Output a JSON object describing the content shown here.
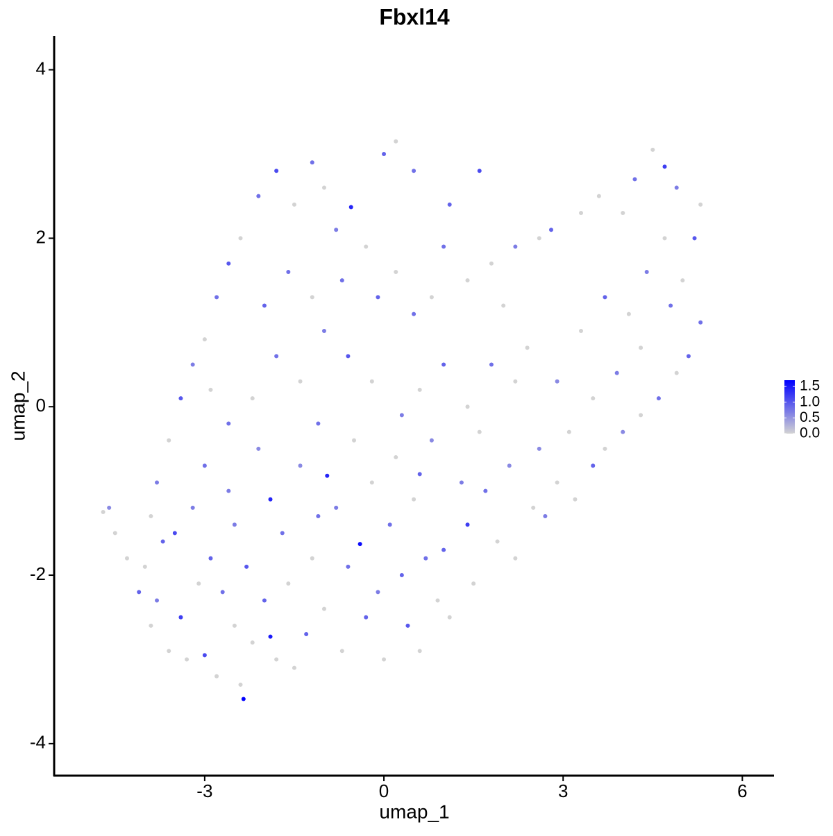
{
  "chart_data": {
    "type": "scatter",
    "title": "Fbxl14",
    "x_label": "umap_1",
    "y_label": "umap_2",
    "xlim": [
      -5.52,
      6.53
    ],
    "ylim": [
      -4.38,
      4.4
    ],
    "xticks": [
      -3,
      0,
      3,
      6
    ],
    "yticks": [
      -4,
      -2,
      0,
      2,
      4
    ],
    "colors": [
      "#d3d3d3",
      "#0000ff"
    ],
    "colorbar": {
      "lim": [
        0,
        1.7
      ],
      "ticks": [
        {
          "value": 0,
          "label": "0.0"
        },
        0.5,
        {
          "value": 1,
          "label": "1.0"
        },
        1.5
      ]
    },
    "x": [
      -4.7,
      -4.6,
      -4.5,
      -4.3,
      -4.1,
      -4.0,
      -3.9,
      -3.8,
      -3.7,
      -3.6,
      -3.5,
      -3.4,
      -3.3,
      -3.2,
      -3.1,
      -3.0,
      -3.0,
      -2.9,
      -2.8,
      -2.7,
      -2.6,
      -2.5,
      -2.4,
      -2.35,
      -2.3,
      -2.2,
      -2.1,
      -2.0,
      -1.9,
      -1.9,
      -1.8,
      -1.7,
      -1.6,
      -1.5,
      -1.4,
      -1.3,
      -1.2,
      -1.1,
      -1.0,
      -0.95,
      -0.8,
      -0.7,
      -0.6,
      -0.5,
      -0.4,
      -0.3,
      -0.2,
      -0.1,
      0.0,
      0.1,
      0.2,
      0.3,
      0.4,
      0.5,
      0.6,
      0.7,
      0.8,
      0.9,
      1.0,
      1.1,
      1.3,
      1.4,
      1.5,
      1.7,
      1.9,
      2.1,
      2.2,
      2.5,
      2.7,
      2.9,
      3.2,
      3.5,
      3.7,
      4.0,
      4.3,
      4.6,
      4.9,
      5.1,
      5.3,
      5.0,
      5.2,
      5.3,
      4.9,
      4.7,
      4.5,
      4.2,
      4.0,
      3.6,
      3.3,
      2.8,
      2.6,
      2.2,
      1.8,
      1.4,
      1.0,
      0.8,
      0.5,
      0.2,
      -0.1,
      -0.3,
      -0.55,
      -0.8,
      -1.0,
      -1.2,
      -1.5,
      -1.8,
      -2.1,
      -2.4,
      -2.6,
      -2.8,
      -3.0,
      -3.2,
      -3.4,
      -3.6,
      -3.8,
      -3.9,
      0.0,
      0.2,
      0.5,
      1.1,
      1.6,
      2.0,
      2.4,
      2.9,
      3.3,
      3.7,
      4.1,
      4.4,
      4.7,
      4.8,
      4.3,
      3.9,
      3.5,
      3.1,
      2.6,
      2.2,
      1.8,
      1.4,
      1.0,
      0.6,
      0.3,
      -0.2,
      -0.6,
      -1.0,
      -1.4,
      -1.8,
      -2.2,
      -2.6,
      -2.9,
      -2.0,
      -1.6,
      -1.2,
      -0.7,
      -2.5,
      -1.1,
      0.6,
      1.6
    ],
    "y": [
      -1.25,
      -1.2,
      -1.5,
      -1.8,
      -2.2,
      -1.9,
      -2.6,
      -2.3,
      -1.6,
      -2.9,
      -1.5,
      -2.5,
      -3.0,
      -1.2,
      -2.1,
      -2.95,
      -0.7,
      -1.8,
      -3.2,
      -2.2,
      -1.0,
      -2.6,
      -3.3,
      -3.47,
      -1.9,
      -2.8,
      -0.5,
      -2.3,
      -2.73,
      -1.1,
      -3.0,
      -1.5,
      -2.1,
      -3.1,
      -0.7,
      -2.7,
      -1.8,
      -0.2,
      -2.4,
      -0.82,
      -1.2,
      -2.9,
      -1.9,
      -0.4,
      -1.63,
      -2.5,
      -0.9,
      -2.2,
      -3.0,
      -1.4,
      -0.6,
      -2.0,
      -2.6,
      -1.1,
      -2.9,
      -1.8,
      -0.4,
      -2.3,
      -1.7,
      -2.5,
      -0.9,
      -1.4,
      -2.1,
      -1.0,
      -1.6,
      -0.7,
      -1.8,
      -1.2,
      -1.3,
      -0.9,
      -1.1,
      -0.7,
      -0.5,
      -0.3,
      -0.1,
      0.1,
      0.4,
      0.6,
      1.0,
      1.5,
      2.0,
      2.4,
      2.6,
      2.85,
      3.05,
      2.7,
      2.3,
      2.5,
      2.3,
      2.1,
      2.0,
      1.9,
      1.7,
      1.5,
      1.9,
      1.3,
      1.1,
      1.6,
      1.3,
      1.9,
      2.37,
      2.1,
      2.6,
      2.9,
      2.4,
      2.8,
      2.5,
      2.0,
      1.7,
      1.3,
      0.8,
      0.5,
      0.1,
      -0.4,
      -0.9,
      -1.3,
      3.0,
      3.15,
      2.8,
      2.4,
      2.8,
      1.2,
      0.7,
      0.3,
      0.9,
      1.3,
      1.1,
      1.6,
      2.0,
      1.2,
      0.7,
      0.4,
      0.1,
      -0.3,
      -0.5,
      0.3,
      0.5,
      0.0,
      0.5,
      0.2,
      -0.1,
      0.3,
      0.6,
      0.9,
      0.3,
      0.6,
      0.1,
      -0.2,
      0.2,
      1.2,
      1.6,
      1.3,
      1.5,
      -1.4,
      -1.3,
      -0.8,
      -0.3
    ],
    "values": [
      0,
      0.6,
      0,
      0,
      0.9,
      0,
      0,
      0.7,
      0.9,
      0,
      1.1,
      1.2,
      0,
      0.7,
      0,
      1.1,
      0.8,
      0.9,
      0,
      0.8,
      0.7,
      0,
      0,
      1.7,
      1.0,
      0,
      0.6,
      0.9,
      1.5,
      1.4,
      0,
      0.8,
      0,
      0,
      0.6,
      0.9,
      0,
      0.8,
      0,
      1.4,
      0.7,
      0,
      0.8,
      0,
      1.6,
      0.9,
      0,
      0.7,
      0,
      0.8,
      0,
      0.9,
      1.0,
      0,
      0,
      0.8,
      0.6,
      0,
      0.9,
      0,
      0.7,
      1.2,
      0,
      0.8,
      0,
      0.6,
      0,
      0,
      0.7,
      0,
      0,
      0.9,
      0,
      0.6,
      0,
      0.8,
      0,
      0.9,
      0.8,
      0,
      1.0,
      0,
      0.7,
      1.2,
      0,
      0.8,
      0,
      0,
      0,
      0.9,
      0,
      0.7,
      0,
      0,
      0.8,
      0,
      0.8,
      0,
      0.9,
      0,
      1.4,
      0.7,
      0,
      0.8,
      0,
      1.1,
      0.8,
      0,
      1.0,
      0.8,
      0,
      0.7,
      1.0,
      0,
      0.7,
      0,
      0.9,
      0,
      0.8,
      0.9,
      1.1,
      0,
      0,
      0.6,
      0,
      0.9,
      0,
      0.7,
      0,
      0.8,
      0,
      0.7,
      0,
      0,
      0.6,
      0,
      0.8,
      0,
      0.9,
      0,
      0.7,
      0,
      1.0,
      0.7,
      0,
      0.8,
      0,
      0.8,
      0,
      0.9,
      0.8,
      0,
      0.8,
      0.7,
      0.8,
      0.9,
      0
    ]
  }
}
